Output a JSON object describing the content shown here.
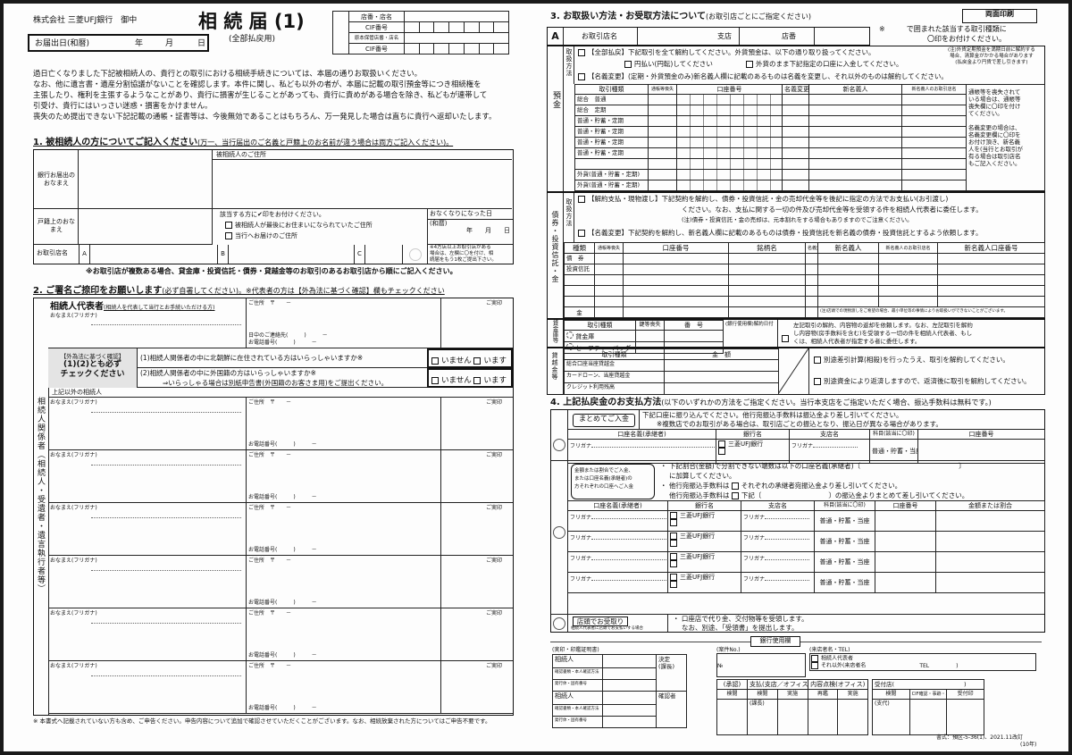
{
  "left": {
    "addressee": "株式会社 三菱UFJ銀行　御中",
    "title": "相 続 届 (1)",
    "subtitle": "(全部払戻用)",
    "date_label": "お届出日(和暦)",
    "year": "年",
    "month": "月",
    "day": "日",
    "office_box": [
      "店番・店名",
      "CIF番号",
      "原本保管店番・店名",
      "CIF番号"
    ],
    "intro": [
      "過日亡くなりました下記被相続人の、貴行との取引における相続手続きについては、本届の通りお取扱いください。",
      "なお、他に遺言書・遺産分割協議がないことを確認します。本件に関し、私ども以外の者が、本届に記載の取引預金等につき相続権を",
      "主張したり、権利を主張するようなことがあり、貴行に損害が生じることがあっても、貴行に責めがある場合を除き、私どもが連帯して",
      "引受け、貴行にはいっさい迷惑・損害をかけません。",
      "喪失のため提出できない下記記載の通帳・証書等は、今後無効であることはもちろん、万一発見した場合は直ちに貴行へ返却いたします。"
    ],
    "s1": {
      "heading": "1. 被相続人の方についてご記入ください",
      "heading_note": "(万一、当行届出のご名義と戸籍上のお名前が違う場合は両方ご記入ください)。",
      "bank_name_label": "銀行お届出のおなまえ",
      "address_label": "被相続人のご住所",
      "koseki_label": "戸籍上のおなまえ",
      "check_title": "該当する方に✔印をお付けください。",
      "check1": "被相続人が最後にお住まいになられていたご住所",
      "check2": "当行へお届けのご住所",
      "death_label": "おなくなりになった日",
      "era": "(和暦)",
      "ymd": "年　　月　　日",
      "branch_label": "お取引店名",
      "branches": [
        "A",
        "B",
        "C"
      ],
      "four_note": [
        "※4方店以上お取引店がある",
        "場合は、左欄に〇を付け、相",
        "続届をもう1枚ご提出下さい。"
      ],
      "note": "※お取引店が複数ある場合、貸金庫・投資信託・債券・貸越金等のお取引のあるお取引店から順にご記入ください。"
    },
    "s2": {
      "heading": "2. ご署名ご捺印をお願いします",
      "heading_note": "(必ず自署してください)。※代表者の方は【外為法に基づく確認】欄もチェックください",
      "side_label": "相続人関係者（相続人・受遺者・遺言執行者等）",
      "rep_title": "相続人代表者",
      "rep_sub": "(相続人を代表して当行とお手続いただける方)",
      "furigana": "おなまえ(フリガナ)",
      "address": "ご住所　〒　　－",
      "day_contact": "日中のご連絡先(　　　)　　　－",
      "phone": "お電話番号(　　　)　　　－",
      "seal": "ご実印",
      "fx_title": "【外為法に基づく確認】",
      "fx_sub1": "(1)(2)とも必ず",
      "fx_sub2": "チェックください",
      "q1": "(1)相続人関係者の中に北朝鮮に在住されている方はいらっしゃいますか※",
      "q2": "(2)相続人関係者の中に外国籍の方はいらっしゃいますか※",
      "q2b": "⇒いらっしゃる場合は別紙申告書(外国籍のお客さま用)をご提出ください。",
      "no": "いません",
      "yes": "います",
      "others": "上記以外の相続人"
    },
    "footer_note": "※ 本書式へ記載されていない方も含め、ご申告ください。申告内容について追加で確認させていただくことがございます。なお、相続放棄された方についてはご申告不要です。"
  },
  "right": {
    "badge": "両面印刷",
    "s3": {
      "heading": "3. お取扱い方法・お受取方法について",
      "heading_note": "(お取引店ごとにご指定ください)",
      "a": "A",
      "branch_label": "お取引店名",
      "shiten": "支店",
      "tenban": "店番",
      "circle_note1": "※　　　で囲まれた該当する取引種類に",
      "circle_note2": "〇印をお付けください。",
      "dep_label": "預金",
      "method": "取扱方法",
      "dep_opt1": "【全部払戻】下記取引を全て解約してください。外貨預金は、以下の通り取り扱ってください。",
      "dep_opt1a": "円払い(円転)してください",
      "dep_opt1b": "外貨のまま下記指定の口座に入金してください。",
      "dep_opt1_note": [
        "(注)外貨定期預金を満期日前に解約する",
        "場合、清算金がかかる場合があります",
        "(払戻金より円貨で差し引きます)"
      ],
      "dep_opt2": "【名義変更】(定期・外貨預金のみ)新名義人欄に記載のあるものは名義を変更し、それ以外のものは解約してください。",
      "dep_headers": [
        "取引種類",
        "通帳等喪失",
        "口座番号",
        "名義変更",
        "新名義人",
        "新名義人のお取引店名"
      ],
      "dep_rows": [
        "総合　普通",
        "総合　定期",
        "普通・貯蓄・定期",
        "普通・貯蓄・定期",
        "普通・貯蓄・定期",
        "普通・貯蓄・定期",
        "",
        "外貨(普通・貯蓄・定期)",
        "外貨(普通・貯蓄・定期)"
      ],
      "dep_side1": [
        "通帳等を喪失されて",
        "いる場合は、通帳等",
        "喪失欄に〇印を付け",
        "てください。"
      ],
      "dep_side2": [
        "名義変更の場合は、",
        "名義変更欄に〇印を",
        "お付け頂き、新名義",
        "人を(当行とお取引が",
        "有る場合は取引店名",
        "もご記入ください。"
      ],
      "bond_label": "債券・投資信託・金",
      "bond_opt1": "【解約支払・現物渡し】下記契約を解約し、債券・投資信託・金の売却代金等を後記に指定の方法でお支払い(お引渡し)",
      "bond_opt1b": "ください。なお、支払に関する一切の件及び売却代金等を受領する件を相続人代表者に委任します。",
      "bond_opt1c": "(注)債券・投資信託・金の売却は、元本割れをする場合もありますのでご注意ください。",
      "bond_opt2": "【名義変更】下記契約を解約し、新名義人欄に記載のあるものは債券・投資信託を新名義の債券・投資信託とするよう依頼します。",
      "bond_headers": [
        "種類",
        "通帳等喪失",
        "口座番号",
        "銘柄名",
        "名義変更",
        "新名義人",
        "新名義人のお取引店名",
        "新名義人口座番号"
      ],
      "bond_rows": [
        "債　券",
        "投資信託",
        "",
        "",
        "",
        "金"
      ],
      "bond_note": "(注)店頭での現物渡しをご希望の場合、最小単位等の事情によりお取扱いができないことがございます。",
      "safe_label": "貸金庫等",
      "safe_headers": [
        "取引種類",
        "鍵等喪失",
        "番　号",
        "(銀行使用欄)解約日付"
      ],
      "safe_rows": [
        "貸金庫",
        "セーフティーバッグ"
      ],
      "safe_text": [
        "左記取引の解約、内容物の返却を依頼します。なお、左記取引を解約",
        "し内容物(房手数料を含む)を受領する一切の件を相続人代表者、もし",
        "くは、相続人代表者が指定する者に委任します。"
      ],
      "od_label": "貸越金等",
      "od_headers": [
        "取引種類",
        "金　額"
      ],
      "od_rows": [
        "総合口座当座貸越金",
        "カードローン、当座貸越金",
        "クレジット利用残高"
      ],
      "od_opt1": "別途差引計算(相殺)を行ったうえ、取引を解約してください。",
      "od_opt2": "別途資金により返済しますので、返済後に取引を解約してください。"
    },
    "s4": {
      "heading": "4. 上記払戻金のお支払方法",
      "heading_note": "(以下のいずれかの方法をご指定ください。当行本支店をご指定いただく場合、振込手数料は無料です。)",
      "lump_btn": "まとめてご入金",
      "lump_text1": "下記口座に振り込んでください。他行宛振込手数料は振込金より差し引いてください。",
      "lump_text2": "※複数店でのお取引がある場合は、取引店ごとの振込となり、振込日が異なる場合があります。",
      "headers": [
        "口座名義(承継者)",
        "銀行名",
        "支店名",
        "科目(該当に〇印)",
        "口座番号",
        "金額または割合"
      ],
      "furigana": "フリガナ",
      "bank": "三菱UFJ銀行",
      "kamoku": "普通・貯蓄・当座",
      "split_btn": [
        "金額または割合でご入金、",
        "または口座名義(承継者)の",
        "方それぞれの口座へご入金"
      ],
      "split_t1": "・ 下記割合(金額)で分割できない端数は以下の口座名義(承継者)〔",
      "split_t2": "に加算してください。",
      "split_t3": "・ 他行宛振込手数料は",
      "split_t3b": "それぞれの承継者宛振込金より差し引いてください。",
      "split_t4": "他行宛振込手数料は",
      "split_t4b": "下記〔　　　　　　　　　　〕の振込金よりまとめて差し引いてください。",
      "store_btn": "店頭でお受取り",
      "store_sub": "相続人代表者に店頭でお支払いする場合",
      "store_t1": "・ 口座店で代り金、交付物等を受領します。",
      "store_t2": "なお、別途、「受領書」を提出します。"
    },
    "bank_use": {
      "title": "銀行使用欄",
      "seal_cert": "(実印・印鑑証明書)",
      "rows": [
        "相続人",
        "確認書類・本人確認方法",
        "発行体・固有番号",
        "相続人",
        "確認書類・本人確認方法",
        "発行体・固有番号"
      ],
      "kettei": "決定",
      "kacho": "(課長)",
      "kakuninsha": "確認者",
      "case_no": "(案件No.)",
      "no": "№",
      "visitor": "(来店者名・TEL)",
      "v1": "相続人代表者",
      "v2": "それ以外(来店者名",
      "tel": "TEL　　　　　)",
      "grid_top": [
        "(承認)",
        "支払(支店／オフィス)",
        "内容点検(オフィス)"
      ],
      "grid_sub": [
        "検閲",
        "検閲",
        "実施",
        "再鑑",
        "実施"
      ],
      "kacho2": "(課長)",
      "uketsuke": "受付店(　　　　　　　　　　　　)",
      "u_sub": [
        "検閲",
        "CIF確認・事跡・印鑑照",
        "受付印"
      ],
      "shidai": "(支代)",
      "form_no": "書式：預区-5-36(1)、2021.11改訂",
      "retention": "(10年)"
    }
  }
}
